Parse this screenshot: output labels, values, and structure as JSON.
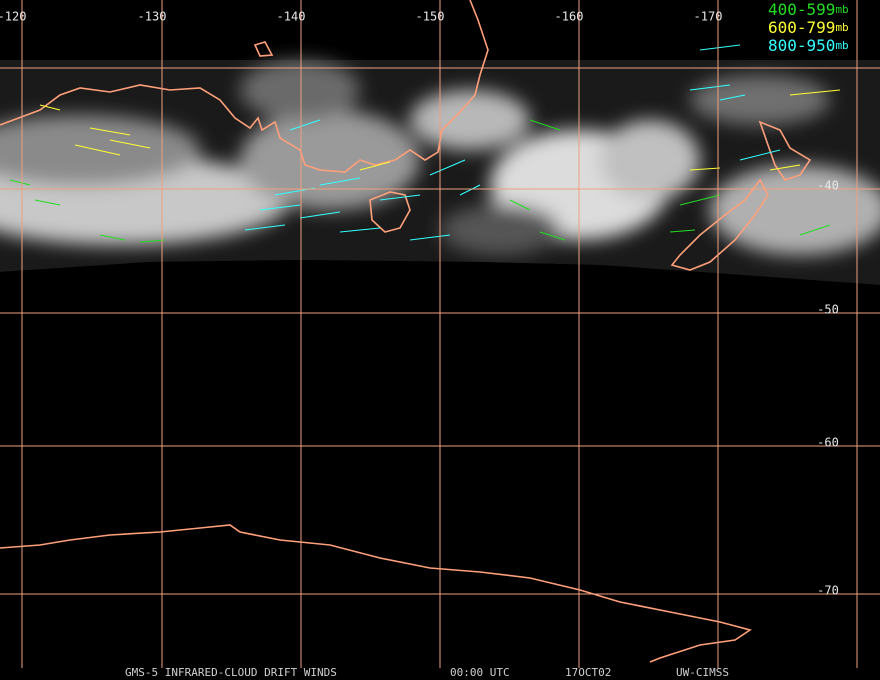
{
  "map": {
    "longitude_labels": [
      "-120",
      "-130",
      "-140",
      "-150",
      "-160",
      "-170"
    ],
    "latitude_labels": [
      "-40",
      "-50",
      "-60",
      "-70"
    ],
    "legend": [
      {
        "label": "400-599",
        "unit": "mb",
        "color": "#22dd22"
      },
      {
        "label": "600-799",
        "unit": "mb",
        "color": "#ffff33"
      },
      {
        "label": "800-950",
        "unit": "mb",
        "color": "#33ffff"
      }
    ],
    "footer": [
      "GMS-5 INFRARED-CLOUD DRIFT WINDS",
      "00:00 UTC",
      "17OCT02",
      "UW-CIMSS"
    ]
  }
}
